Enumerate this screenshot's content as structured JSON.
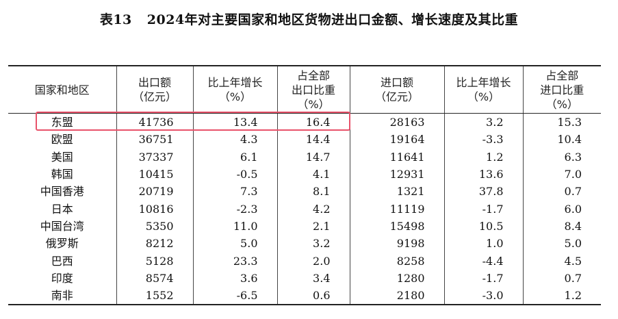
{
  "title": {
    "number": "表13",
    "text": "2024年对主要国家和地区货物进出口金额、增长速度及其比重"
  },
  "headers": [
    [
      "国家和地区"
    ],
    [
      "出口额",
      "（亿元）"
    ],
    [
      "比上年增长",
      "（%）"
    ],
    [
      "占全部",
      "出口比重",
      "（%）"
    ],
    [
      "进口额",
      "（亿元）"
    ],
    [
      "比上年增长",
      "（%）"
    ],
    [
      "占全部",
      "进口比重",
      "（%）"
    ]
  ],
  "rows": [
    [
      "东盟",
      "41736",
      "13.4",
      "16.4",
      "28163",
      "3.2",
      "15.3"
    ],
    [
      "欧盟",
      "36751",
      "4.3",
      "14.4",
      "19164",
      "-3.3",
      "10.4"
    ],
    [
      "美国",
      "37337",
      "6.1",
      "14.7",
      "11641",
      "1.2",
      "6.3"
    ],
    [
      "韩国",
      "10415",
      "-0.5",
      "4.1",
      "12931",
      "13.6",
      "7.0"
    ],
    [
      "中国香港",
      "20719",
      "7.3",
      "8.1",
      "1321",
      "37.8",
      "0.7"
    ],
    [
      "日本",
      "10816",
      "-2.3",
      "4.2",
      "11119",
      "-1.7",
      "6.0"
    ],
    [
      "中国台湾",
      "5350",
      "11.0",
      "2.1",
      "15498",
      "10.5",
      "8.4"
    ],
    [
      "俄罗斯",
      "8212",
      "5.0",
      "3.2",
      "9198",
      "1.0",
      "5.0"
    ],
    [
      "巴西",
      "5128",
      "23.3",
      "2.0",
      "8258",
      "-4.4",
      "4.5"
    ],
    [
      "印度",
      "8574",
      "3.6",
      "3.4",
      "1280",
      "-1.7",
      "0.7"
    ],
    [
      "南非",
      "1552",
      "-6.5",
      "0.6",
      "2180",
      "-3.0",
      "1.2"
    ]
  ],
  "highlight_color": "#e8526a"
}
